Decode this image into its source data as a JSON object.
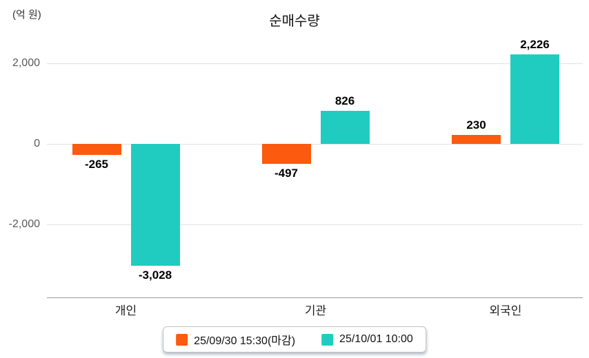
{
  "title": "순매수량",
  "unit_label": "(억 원)",
  "chart_data": {
    "type": "bar",
    "title": "순매수량",
    "xlabel": "",
    "ylabel": "(억 원)",
    "categories": [
      "개인",
      "기관",
      "외국인"
    ],
    "series": [
      {
        "name": "25/09/30 15:30(마감)",
        "color": "#fb5a0f",
        "values": [
          -265,
          -497,
          230
        ],
        "labels": [
          "-265",
          "-497",
          "230"
        ]
      },
      {
        "name": "25/10/01 10:00",
        "color": "#20ccbf",
        "values": [
          -3028,
          826,
          2226
        ],
        "labels": [
          "-3,028",
          "826",
          "2,226"
        ]
      }
    ],
    "yticks": [
      2000,
      0,
      -2000
    ],
    "ytick_labels": [
      "2,000",
      "0",
      "-2,000"
    ],
    "ylim": [
      -3500,
      2600
    ],
    "grid": true,
    "legend_position": "bottom"
  },
  "colors": {
    "series1": "#fb5a0f",
    "series2": "#20ccbf",
    "gridline": "#e1e1e1",
    "axis_line": "#9a9a9a",
    "tick_text": "#57585a",
    "value_text": "#000000"
  }
}
